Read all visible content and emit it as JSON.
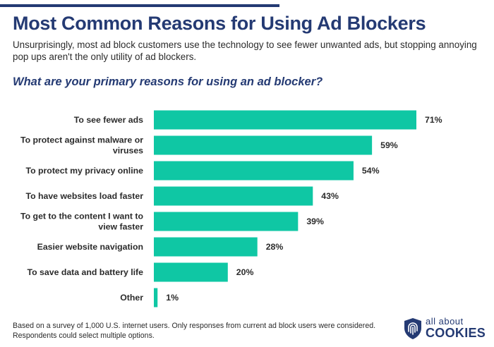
{
  "header": {
    "title": "Most Common Reasons for Using Ad Blockers",
    "subtitle": "Unsurprisingly, most ad block customers use the technology to see fewer unwanted ads, but stopping annoying pop ups aren't the only utility of ad blockers.",
    "question": "What are your primary reasons for using an ad blocker?"
  },
  "chart_data": {
    "type": "bar",
    "orientation": "horizontal",
    "categories": [
      [
        "To see fewer ads"
      ],
      [
        "To protect against malware or",
        "viruses"
      ],
      [
        "To protect my privacy online"
      ],
      [
        "To have websites load faster"
      ],
      [
        "To get to the content I want to",
        "view faster"
      ],
      [
        "Easier website navigation"
      ],
      [
        "To save data and battery life"
      ],
      [
        "Other"
      ]
    ],
    "values": [
      71,
      59,
      54,
      43,
      39,
      28,
      20,
      1
    ],
    "value_labels": [
      "71%",
      "59%",
      "54%",
      "43%",
      "39%",
      "28%",
      "20%",
      "1%"
    ],
    "value_suffix": "%",
    "xlim": [
      0,
      71
    ],
    "grid": false,
    "bar_color": "#0fc7a4"
  },
  "footer": {
    "note": "Based on a survey of 1,000 U.S. internet users. Only responses from current ad block users were considered. Respondents could select multiple options."
  },
  "logo": {
    "top": "all about",
    "bottom": "COOKIES",
    "color": "#243a73"
  }
}
